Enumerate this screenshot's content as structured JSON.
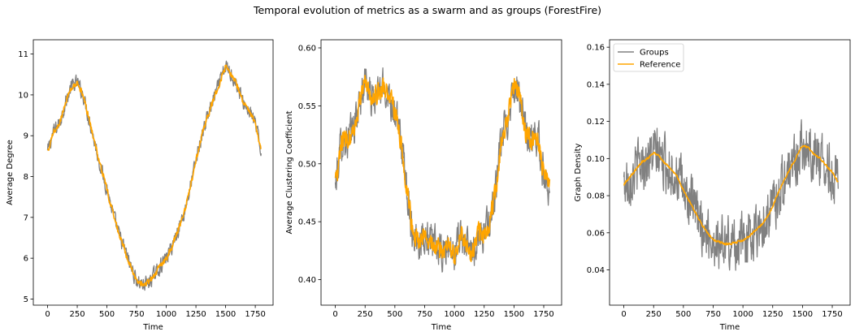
{
  "figure": {
    "title": "Temporal evolution of metrics as a swarm and as groups (ForestFire)"
  },
  "colors": {
    "groups": "#808080",
    "reference": "#ffa500"
  },
  "chart_data": [
    {
      "type": "line",
      "xlabel": "Time",
      "ylabel": "Average Degree",
      "xlim": [
        -120,
        1900
      ],
      "ylim": [
        4.85,
        11.35
      ],
      "xticks": [
        0,
        250,
        500,
        750,
        1000,
        1250,
        1500,
        1750
      ],
      "yticks": [
        5,
        6,
        7,
        8,
        9,
        10,
        11
      ],
      "ytick_labels": [
        "5",
        "6",
        "7",
        "8",
        "9",
        "10",
        "11"
      ],
      "legend": null,
      "series": [
        {
          "name": "Groups",
          "noise": 0.25,
          "x": [
            0,
            50,
            100,
            150,
            200,
            250,
            300,
            350,
            400,
            450,
            500,
            550,
            600,
            650,
            700,
            750,
            800,
            850,
            900,
            950,
            1000,
            1050,
            1100,
            1150,
            1200,
            1250,
            1300,
            1350,
            1400,
            1450,
            1500,
            1550,
            1600,
            1650,
            1700,
            1750,
            1800
          ],
          "y": [
            8.6,
            9.1,
            9.3,
            9.8,
            10.2,
            10.3,
            10.0,
            9.4,
            8.8,
            8.2,
            7.7,
            7.1,
            6.6,
            6.2,
            5.8,
            5.45,
            5.35,
            5.4,
            5.6,
            5.8,
            6.0,
            6.3,
            6.7,
            7.1,
            7.7,
            8.4,
            9.0,
            9.5,
            9.9,
            10.3,
            10.7,
            10.5,
            10.2,
            9.8,
            9.6,
            9.3,
            8.6
          ]
        },
        {
          "name": "Reference",
          "noise": 0.1,
          "x": [
            0,
            50,
            100,
            150,
            200,
            250,
            300,
            350,
            400,
            450,
            500,
            550,
            600,
            650,
            700,
            750,
            800,
            850,
            900,
            950,
            1000,
            1050,
            1100,
            1150,
            1200,
            1250,
            1300,
            1350,
            1400,
            1450,
            1500,
            1550,
            1600,
            1650,
            1700,
            1750,
            1800
          ],
          "y": [
            8.6,
            9.1,
            9.3,
            9.8,
            10.2,
            10.3,
            10.0,
            9.4,
            8.8,
            8.2,
            7.7,
            7.1,
            6.6,
            6.2,
            5.8,
            5.45,
            5.35,
            5.4,
            5.6,
            5.8,
            6.0,
            6.3,
            6.7,
            7.1,
            7.7,
            8.4,
            9.0,
            9.5,
            9.9,
            10.3,
            10.7,
            10.5,
            10.2,
            9.8,
            9.6,
            9.3,
            8.6
          ]
        }
      ]
    },
    {
      "type": "line",
      "xlabel": "Time",
      "ylabel": "Average Clustering Coefficient",
      "xlim": [
        -120,
        1900
      ],
      "ylim": [
        0.378,
        0.607
      ],
      "xticks": [
        0,
        250,
        500,
        750,
        1000,
        1250,
        1500,
        1750
      ],
      "yticks": [
        0.4,
        0.45,
        0.5,
        0.55,
        0.6
      ],
      "ytick_labels": [
        "0.40",
        "0.45",
        "0.50",
        "0.55",
        "0.60"
      ],
      "legend": null,
      "series": [
        {
          "name": "Groups",
          "noise": 0.022,
          "x": [
            0,
            50,
            100,
            150,
            200,
            250,
            300,
            350,
            400,
            450,
            500,
            550,
            600,
            650,
            700,
            750,
            800,
            850,
            900,
            950,
            1000,
            1050,
            1100,
            1150,
            1200,
            1250,
            1300,
            1350,
            1400,
            1450,
            1500,
            1550,
            1600,
            1650,
            1700,
            1750,
            1800
          ],
          "y": [
            0.48,
            0.52,
            0.52,
            0.53,
            0.55,
            0.575,
            0.555,
            0.56,
            0.565,
            0.56,
            0.545,
            0.52,
            0.48,
            0.44,
            0.435,
            0.44,
            0.43,
            0.43,
            0.42,
            0.43,
            0.42,
            0.44,
            0.43,
            0.42,
            0.44,
            0.44,
            0.45,
            0.48,
            0.525,
            0.54,
            0.57,
            0.555,
            0.525,
            0.52,
            0.525,
            0.49,
            0.48
          ]
        },
        {
          "name": "Reference",
          "noise": 0.012,
          "x": [
            0,
            50,
            100,
            150,
            200,
            250,
            300,
            350,
            400,
            450,
            500,
            550,
            600,
            650,
            700,
            750,
            800,
            850,
            900,
            950,
            1000,
            1050,
            1100,
            1150,
            1200,
            1250,
            1300,
            1350,
            1400,
            1450,
            1500,
            1550,
            1600,
            1650,
            1700,
            1750,
            1800
          ],
          "y": [
            0.48,
            0.52,
            0.52,
            0.53,
            0.55,
            0.575,
            0.555,
            0.56,
            0.565,
            0.56,
            0.545,
            0.52,
            0.48,
            0.44,
            0.435,
            0.44,
            0.43,
            0.43,
            0.42,
            0.43,
            0.42,
            0.44,
            0.43,
            0.42,
            0.44,
            0.44,
            0.45,
            0.48,
            0.525,
            0.54,
            0.57,
            0.555,
            0.525,
            0.52,
            0.525,
            0.49,
            0.48
          ]
        }
      ]
    },
    {
      "type": "line",
      "xlabel": "Time",
      "ylabel": "Graph Density",
      "xlim": [
        -120,
        1900
      ],
      "ylim": [
        0.021,
        0.164
      ],
      "xticks": [
        0,
        250,
        500,
        750,
        1000,
        1250,
        1500,
        1750
      ],
      "yticks": [
        0.04,
        0.06,
        0.08,
        0.1,
        0.12,
        0.14,
        0.16
      ],
      "ytick_labels": [
        "0.04",
        "0.06",
        "0.08",
        "0.10",
        "0.12",
        "0.14",
        "0.16"
      ],
      "legend": {
        "loc": "upper left",
        "entries": [
          "Groups",
          "Reference"
        ]
      },
      "series": [
        {
          "name": "Groups",
          "noise": 0.02,
          "x": [
            0,
            50,
            100,
            150,
            200,
            250,
            300,
            350,
            400,
            450,
            500,
            550,
            600,
            650,
            700,
            750,
            800,
            850,
            900,
            950,
            1000,
            1050,
            1100,
            1150,
            1200,
            1250,
            1300,
            1350,
            1400,
            1450,
            1500,
            1550,
            1600,
            1650,
            1700,
            1750,
            1800
          ],
          "y": [
            0.086,
            0.09,
            0.094,
            0.098,
            0.1,
            0.103,
            0.101,
            0.097,
            0.094,
            0.09,
            0.083,
            0.077,
            0.071,
            0.065,
            0.06,
            0.056,
            0.055,
            0.054,
            0.054,
            0.055,
            0.056,
            0.058,
            0.061,
            0.064,
            0.068,
            0.074,
            0.082,
            0.089,
            0.095,
            0.101,
            0.107,
            0.106,
            0.102,
            0.1,
            0.096,
            0.093,
            0.087
          ]
        },
        {
          "name": "Reference",
          "noise": 0.0008,
          "x": [
            0,
            50,
            100,
            150,
            200,
            250,
            300,
            350,
            400,
            450,
            500,
            550,
            600,
            650,
            700,
            750,
            800,
            850,
            900,
            950,
            1000,
            1050,
            1100,
            1150,
            1200,
            1250,
            1300,
            1350,
            1400,
            1450,
            1500,
            1550,
            1600,
            1650,
            1700,
            1750,
            1800
          ],
          "y": [
            0.086,
            0.09,
            0.094,
            0.098,
            0.1,
            0.103,
            0.101,
            0.097,
            0.094,
            0.09,
            0.083,
            0.077,
            0.071,
            0.065,
            0.06,
            0.056,
            0.055,
            0.054,
            0.054,
            0.055,
            0.056,
            0.058,
            0.061,
            0.064,
            0.068,
            0.074,
            0.082,
            0.089,
            0.095,
            0.101,
            0.107,
            0.106,
            0.102,
            0.1,
            0.096,
            0.093,
            0.087
          ]
        }
      ]
    }
  ]
}
